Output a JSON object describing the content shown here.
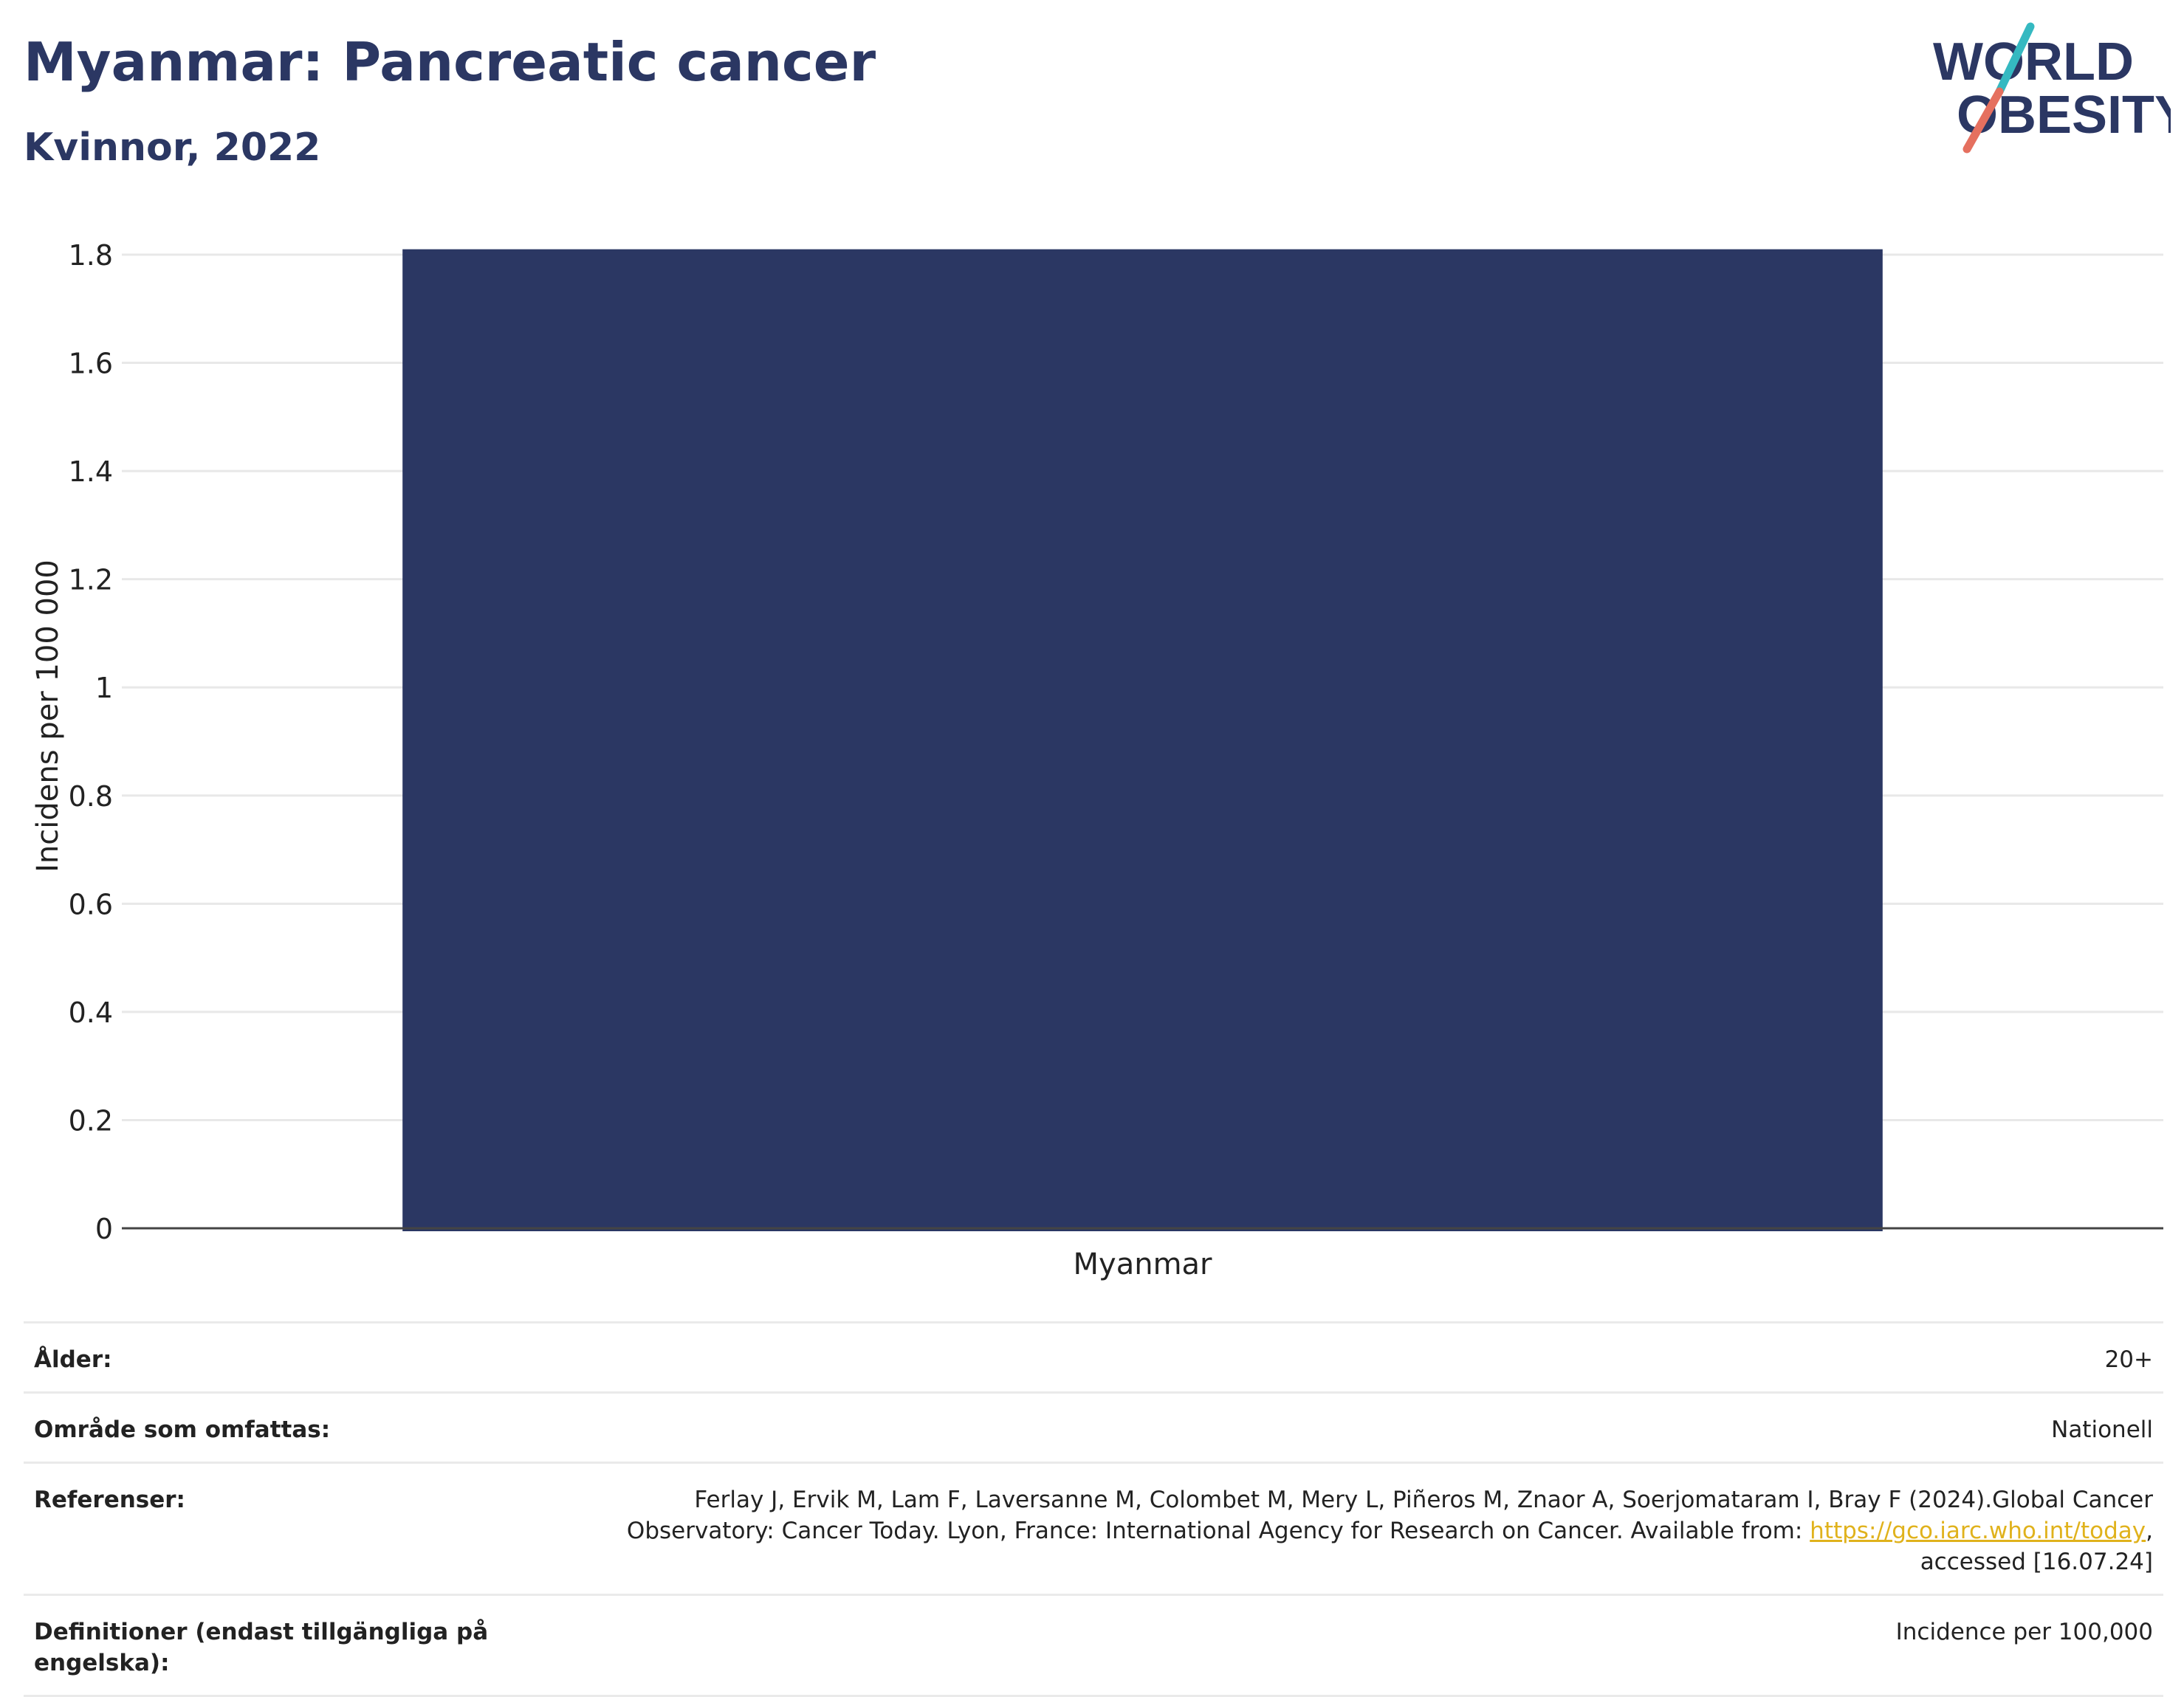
{
  "title": "Myanmar: Pancreatic cancer",
  "subtitle": "Kvinnor, 2022",
  "logo": {
    "line1": "WORLD",
    "line2": "OBESITY",
    "colors": {
      "text": "#2b3763",
      "teal": "#35b9c1",
      "coral": "#e5705f"
    }
  },
  "chart_data": {
    "type": "bar",
    "categories": [
      "Myanmar"
    ],
    "values": [
      1.81
    ],
    "ylabel": "Incidens per 100 000",
    "ylim": [
      0,
      1.8
    ],
    "yticks": [
      0,
      0.2,
      0.4,
      0.6,
      0.8,
      1,
      1.2,
      1.4,
      1.6,
      1.8
    ],
    "ytick_labels": [
      "0",
      "0.2",
      "0.4",
      "0.6",
      "0.8",
      "1",
      "1.2",
      "1.4",
      "1.6",
      "1.8"
    ],
    "bar_color": "#2b3763",
    "grid": true
  },
  "meta": {
    "age_label": "Ålder:",
    "age_value": "20+",
    "area_label": "Område som omfattas:",
    "area_value": "Nationell",
    "ref_label": "Referenser:",
    "ref_text_1": "Ferlay J, Ervik M, Lam F, Laversanne M, Colombet M, Mery L, Piñeros M, Znaor A, Soerjomataram I, Bray F (2024).Global Cancer Observatory: Cancer Today. Lyon, France: International Agency for Research on Cancer. Available from: ",
    "ref_link": "https://gco.iarc.who.int/today",
    "ref_text_2": ", accessed [16.07.24]",
    "def_label": "Definitioner (endast tillgängliga på engelska):",
    "def_value": "Incidence per 100,000"
  }
}
